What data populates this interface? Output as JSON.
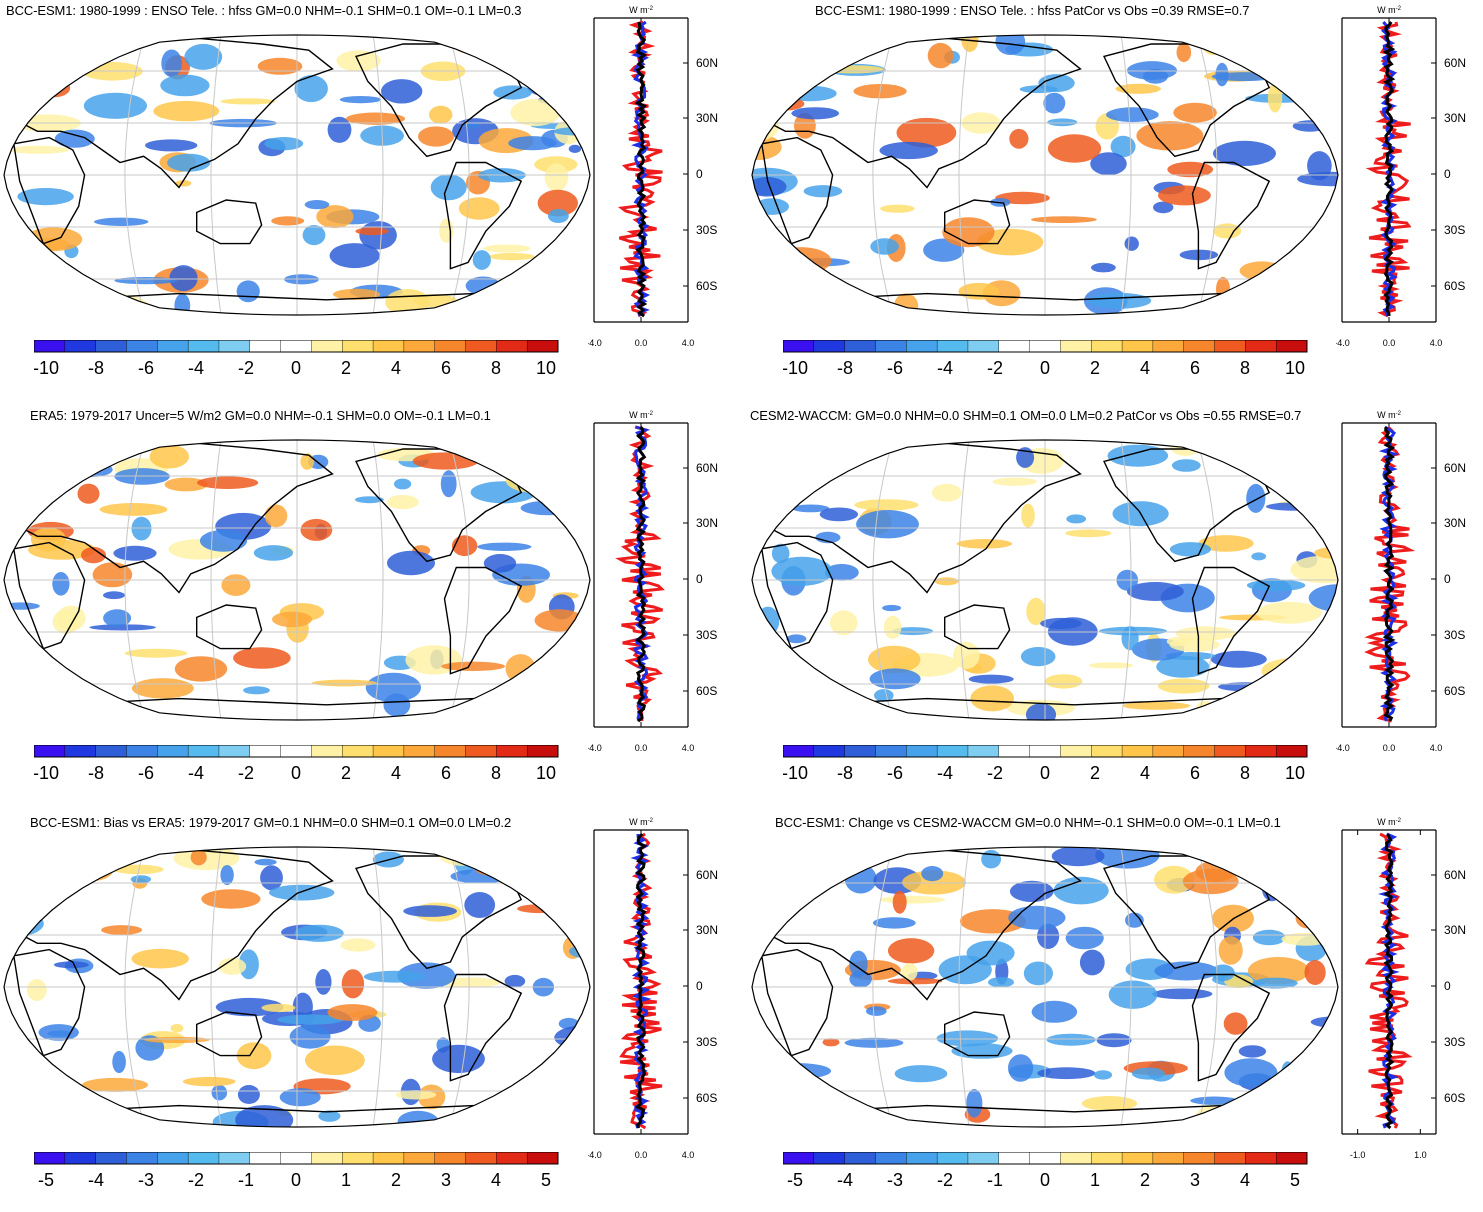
{
  "units_label": "W m",
  "units_sup": "-2",
  "lat_ticks": [
    "60N",
    "30N",
    "0",
    "30S",
    "60S"
  ],
  "colors": {
    "scale": [
      "#3a0ff0",
      "#1f38e0",
      "#2f5fd8",
      "#3c83e6",
      "#46a2ea",
      "#55baee",
      "#7fcdf0",
      "#ffffff",
      "#ffffff",
      "#fff2a6",
      "#ffdf6e",
      "#ffc64a",
      "#fca83a",
      "#f6862c",
      "#ee5a1f",
      "#e32a17",
      "#c80d0d"
    ],
    "ocean": "#ffffff",
    "land_outline": "#000000",
    "grid": "#c8c8c8",
    "curve_red": "#ee1c1c",
    "curve_blue": "#1c2ee8",
    "curve_black": "#000000"
  },
  "panels": [
    {
      "id": "p1",
      "title": "BCC-ESM1: 1980-1999 : ENSO Tele. : hfss GM=0.0 NHM=-0.1 SHM=0.1 OM=-0.1 LM=0.3",
      "colorbar_labels": [
        "-10",
        "-8",
        "-6",
        "-4",
        "-2",
        "0",
        "2",
        "4",
        "6",
        "8",
        "10"
      ],
      "zonal_xticks": [
        "-4.0",
        "0.0",
        "4.0"
      ],
      "zonal_range": [
        -4,
        4
      ]
    },
    {
      "id": "p2",
      "title": "BCC-ESM1: 1980-1999 : ENSO Tele. : hfss PatCor vs Obs =0.39 RMSE=0.7",
      "colorbar_labels": [
        "-10",
        "-8",
        "-6",
        "-4",
        "-2",
        "0",
        "2",
        "4",
        "6",
        "8",
        "10"
      ],
      "zonal_xticks": [
        "-4.0",
        "0.0",
        "4.0"
      ],
      "zonal_range": [
        -4,
        4
      ]
    },
    {
      "id": "p3",
      "title": "ERA5: 1979-2017 Uncer=5 W/m2 GM=0.0 NHM=-0.1 SHM=0.0 OM=-0.1 LM=0.1",
      "colorbar_labels": [
        "-10",
        "-8",
        "-6",
        "-4",
        "-2",
        "0",
        "2",
        "4",
        "6",
        "8",
        "10"
      ],
      "zonal_xticks": [
        "-4.0",
        "0.0",
        "4.0"
      ],
      "zonal_range": [
        -4,
        4
      ]
    },
    {
      "id": "p4",
      "title": "CESM2-WACCM: GM=0.0 NHM=0.0 SHM=0.1 OM=0.0 LM=0.2 PatCor vs Obs =0.55 RMSE=0.7",
      "colorbar_labels": [
        "-10",
        "-8",
        "-6",
        "-4",
        "-2",
        "0",
        "2",
        "4",
        "6",
        "8",
        "10"
      ],
      "zonal_xticks": [
        "-4.0",
        "0.0",
        "4.0"
      ],
      "zonal_range": [
        -4,
        4
      ]
    },
    {
      "id": "p5",
      "title": "BCC-ESM1: Bias vs ERA5: 1979-2017 GM=0.1 NHM=0.0 SHM=0.1 OM=0.0 LM=0.2",
      "colorbar_labels": [
        "-5",
        "-4",
        "-3",
        "-2",
        "-1",
        "0",
        "1",
        "2",
        "3",
        "4",
        "5"
      ],
      "zonal_xticks": [
        "-4.0",
        "0.0",
        "4.0"
      ],
      "zonal_range": [
        -4,
        4
      ]
    },
    {
      "id": "p6",
      "title": "BCC-ESM1: Change vs CESM2-WACCM GM=0.0 NHM=-0.1 SHM=0.0 OM=-0.1 LM=0.1",
      "colorbar_labels": [
        "-5",
        "-4",
        "-3",
        "-2",
        "-1",
        "0",
        "1",
        "2",
        "3",
        "4",
        "5"
      ],
      "zonal_xticks": [
        "-1.0",
        "1.0"
      ],
      "zonal_range": [
        -1.5,
        1.5
      ]
    }
  ]
}
